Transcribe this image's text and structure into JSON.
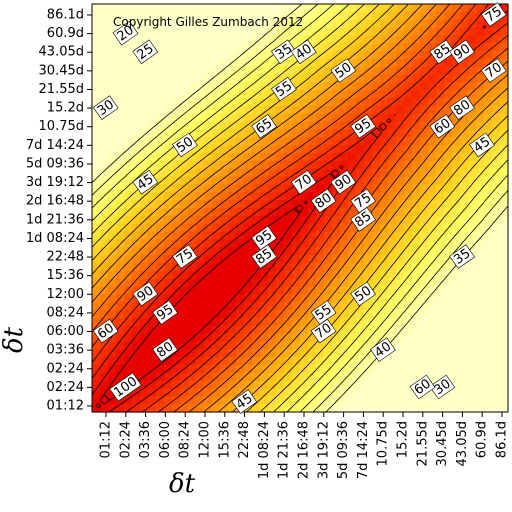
{
  "chart_data": {
    "type": "heatmap",
    "subtype": "contour",
    "title": "",
    "copyright": "Copyright Gilles Zumbach 2012",
    "xlabel": "δt",
    "ylabel": "δt",
    "x_ticks": [
      "01:12",
      "02:24",
      "03:36",
      "06:00",
      "08:24",
      "12:00",
      "15:36",
      "22:48",
      "1d 08:24",
      "1d 21:36",
      "2d 16:48",
      "3d 19:12",
      "5d 09:36",
      "7d 14:24",
      "10.75d",
      "15.2d",
      "21.55d",
      "30.45d",
      "43.05d",
      "60.9d",
      "86.1d"
    ],
    "y_ticks": [
      "01:12",
      "02:24",
      "02:24",
      "03:36",
      "06:00",
      "08:24",
      "12:00",
      "15:36",
      "22:48",
      "1d 08:24",
      "1d 21:36",
      "2d 16:48",
      "3d 19:12",
      "5d 09:36",
      "7d 14:24",
      "10.75d",
      "15.2d",
      "21.55d",
      "30.45d",
      "43.05d",
      "60.9d",
      "86.1d"
    ],
    "value_range": [
      0,
      100
    ],
    "color_scale": [
      "#ffffc8",
      "#ffff66",
      "#ffd21e",
      "#ff8c0a",
      "#ff3c00",
      "#e60000"
    ],
    "line_color": "#000000",
    "grid": false,
    "contour_levels": [
      20,
      25,
      30,
      35,
      40,
      45,
      50,
      55,
      60,
      65,
      70,
      75,
      80,
      85,
      90,
      95,
      100
    ],
    "contour_labels": [
      {
        "text": "20",
        "x": "02:24",
        "y": "60.9d"
      },
      {
        "text": "25",
        "x": "03:36",
        "y": "43.05d"
      },
      {
        "text": "30",
        "x": "01:12",
        "y": "15.2d"
      },
      {
        "text": "45",
        "x": "03:36",
        "y": "3d 19:12"
      },
      {
        "text": "50",
        "x": "08:24",
        "y": "7d 14:24"
      },
      {
        "text": "35",
        "x": "1d 21:36",
        "y": "43.05d"
      },
      {
        "text": "40",
        "x": "2d 16:48",
        "y": "43.05d"
      },
      {
        "text": "50",
        "x": "5d 09:36",
        "y": "30.45d"
      },
      {
        "text": "55",
        "x": "1d 21:36",
        "y": "21.55d"
      },
      {
        "text": "65",
        "x": "1d 08:24",
        "y": "10.75d"
      },
      {
        "text": "70",
        "x": "15.36",
        "y": "3d 19:12"
      },
      {
        "text": "80",
        "x": "15.36",
        "y": "2d 16:48"
      },
      {
        "text": "75",
        "x": "86.1d",
        "y": "86.1d"
      },
      {
        "text": "85",
        "x": "30.45d",
        "y": "43.05d"
      },
      {
        "text": "90",
        "x": "43.05d",
        "y": "43.05d"
      },
      {
        "text": "70",
        "x": "86.1d",
        "y": "30.45d"
      },
      {
        "text": "95",
        "x": "7d 14:24",
        "y": "10.75d"
      },
      {
        "text": "80",
        "x": "43.05d",
        "y": "15.2d"
      },
      {
        "text": "60",
        "x": "30.45d",
        "y": "10.75d"
      },
      {
        "text": "45",
        "x": "60.9d",
        "y": "7d 14:24"
      },
      {
        "text": "90",
        "x": "5d 09:36",
        "y": "3d 19:12"
      },
      {
        "text": "75",
        "x": "7d 14:24",
        "y": "2d 16:48"
      },
      {
        "text": "85",
        "x": "7d 14:24",
        "y": "1d 21:36"
      },
      {
        "text": "75",
        "x": "08:24",
        "y": "22:48"
      },
      {
        "text": "95",
        "x": "1d 08:24",
        "y": "1d 08:24"
      },
      {
        "text": "85",
        "x": "1d 08:24",
        "y": "22:48"
      },
      {
        "text": "35",
        "x": "43.05d",
        "y": "22:48"
      },
      {
        "text": "90",
        "x": "03:36",
        "y": "12:00"
      },
      {
        "text": "95",
        "x": "06:00",
        "y": "08:24"
      },
      {
        "text": "50",
        "x": "7d 14:24",
        "y": "12:00"
      },
      {
        "text": "55",
        "x": "3d 19:12",
        "y": "08:24"
      },
      {
        "text": "60",
        "x": "01:12",
        "y": "06:00"
      },
      {
        "text": "70",
        "x": "15.36",
        "y": "06:00"
      },
      {
        "text": "80",
        "x": "06:00",
        "y": "03:36"
      },
      {
        "text": "40",
        "x": "10.75d",
        "y": "03:36"
      },
      {
        "text": "30",
        "x": "30.45d",
        "y": "02:24"
      },
      {
        "text": "100",
        "x": "02:24",
        "y": "02:24"
      },
      {
        "text": "60",
        "x": "15.36",
        "y": "02:24"
      },
      {
        "text": "45",
        "x": "22:48",
        "y": "01:12"
      }
    ]
  }
}
